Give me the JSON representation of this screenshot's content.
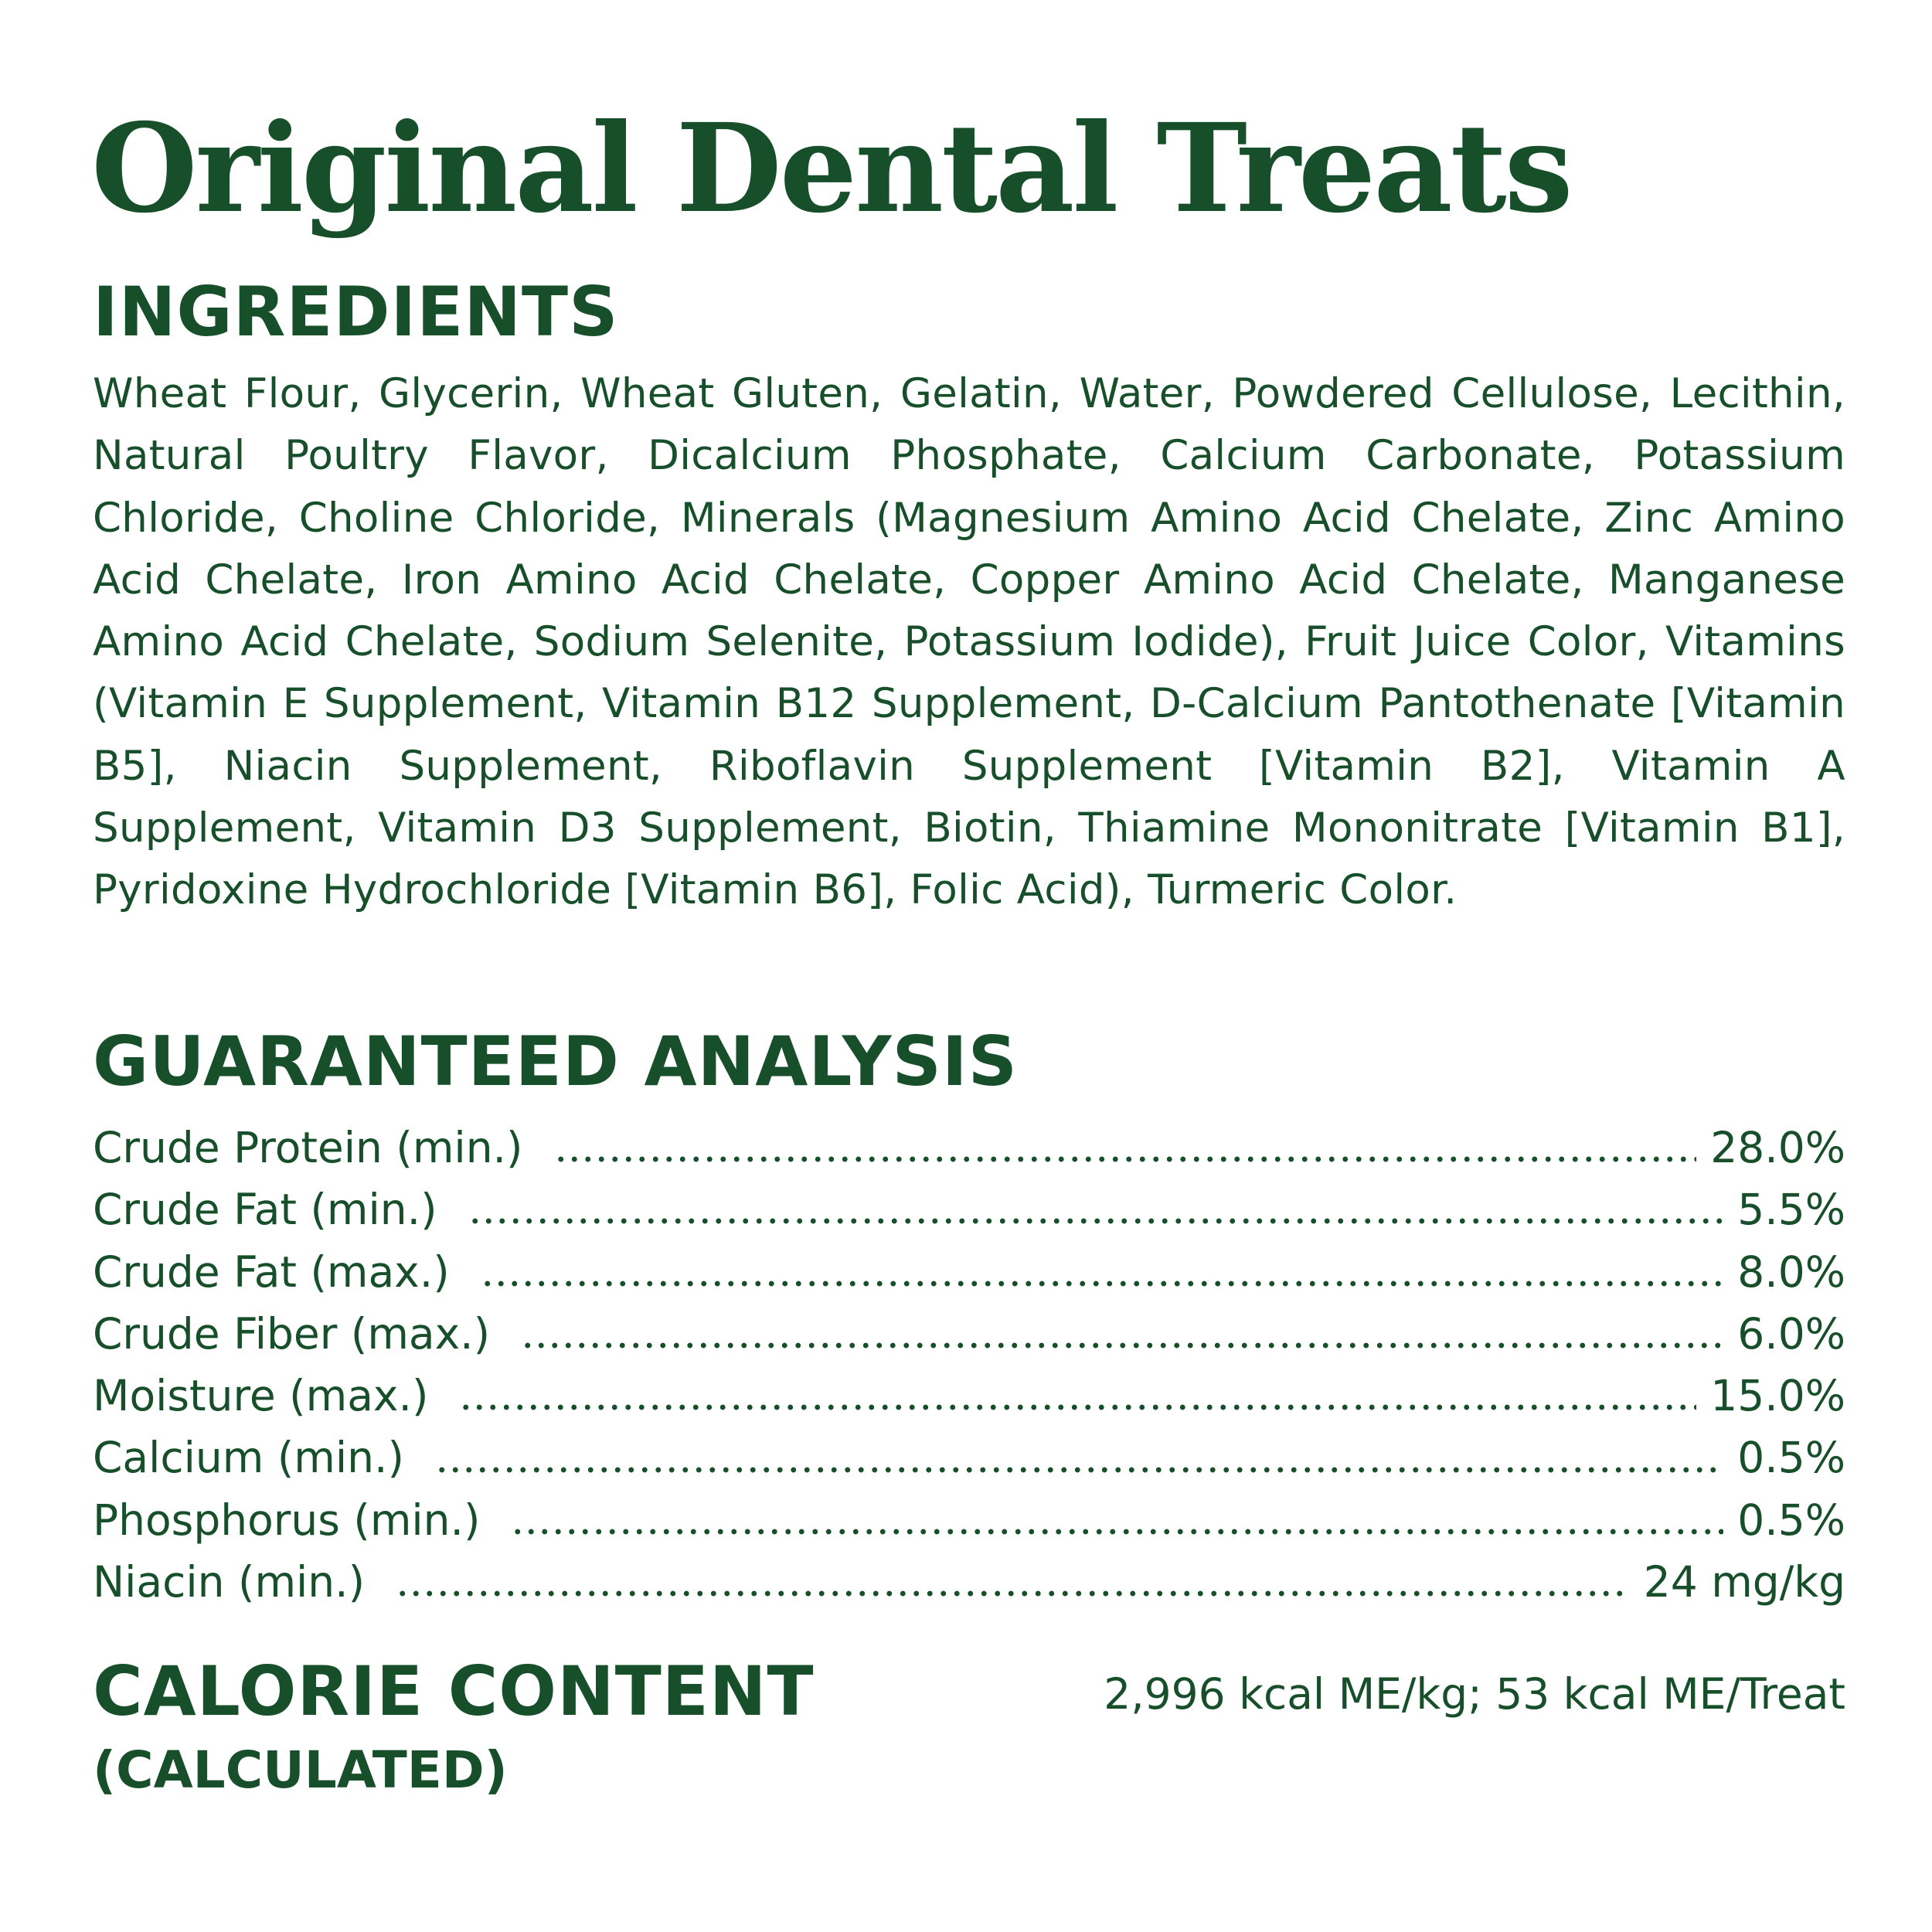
{
  "title": "Original Dental Treats",
  "ingredients": {
    "heading": "INGREDIENTS",
    "text": "Wheat Flour, Glycerin, Wheat Gluten, Gelatin, Water, Powdered Cellulose, Lecithin, Natural Poultry Flavor, Dicalcium Phosphate, Calcium Carbonate, Potassium Chloride, Choline Chloride, Minerals (Magnesium Amino Acid Chelate, Zinc Amino Acid Chelate, Iron Amino Acid Chelate, Copper Amino Acid Chelate, Manganese Amino Acid Chelate, Sodium Selenite, Potassium Iodide), Fruit Juice Color, Vitamins (Vitamin E Supplement, Vitamin B12 Supplement, D-Calcium Pantothenate [Vitamin B5], Niacin Supplement, Riboflavin Supplement [Vitamin B2], Vitamin A Supplement, Vitamin D3 Supplement, Biotin, Thiamine Mononitrate [Vitamin B1], Pyridoxine Hydrochloride [Vitamin B6], Folic Acid), Turmeric Color."
  },
  "analysis": {
    "heading": "GUARANTEED ANALYSIS",
    "rows": [
      {
        "label": "Crude Protein (min.)",
        "value": "28.0%"
      },
      {
        "label": "Crude Fat (min.)",
        "value": "5.5%"
      },
      {
        "label": "Crude Fat (max.)",
        "value": "8.0%"
      },
      {
        "label": "Crude Fiber (max.)",
        "value": "6.0%"
      },
      {
        "label": "Moisture (max.)",
        "value": "15.0%"
      },
      {
        "label": "Calcium (min.)",
        "value": "0.5%"
      },
      {
        "label": "Phosphorus (min.)",
        "value": "0.5%"
      },
      {
        "label": "Niacin (min.)",
        "value": "24 mg/kg"
      }
    ]
  },
  "calorie": {
    "heading": "CALORIE CONTENT",
    "subheading": "(CALCULATED)",
    "value": "2,996 kcal ME/kg; 53 kcal ME/Treat"
  },
  "colors": {
    "text": "#174f2a",
    "background": "#ffffff"
  }
}
